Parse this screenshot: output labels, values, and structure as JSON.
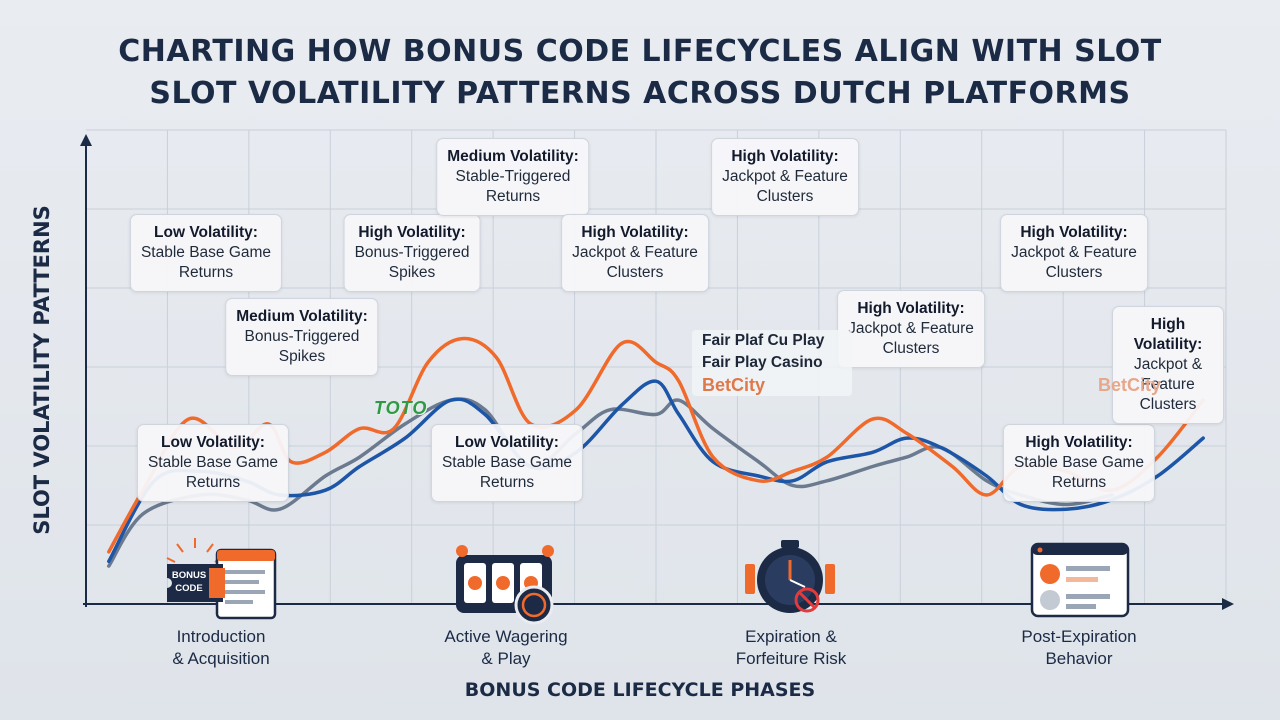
{
  "title_lines": [
    "CHARTING HOW BONUS CODE LIFECYCLES ALIGN WITH SLOT",
    "SLOT VOLATILITY PATTERNS ACROSS DUTCH PLATFORMS"
  ],
  "colors": {
    "orange": "#f06a2b",
    "blue": "#1d56a6",
    "gray": "#6b7a8e",
    "axis": "#1b2a45",
    "grid": "#c9d0da"
  },
  "chart_data": {
    "type": "line",
    "title": "CHARTING HOW BONUS CODE LIFECYCLES ALIGN WITH SLOT SLOT VOLATILITY PATTERNS ACROSS DUTCH PLATFORMS",
    "xlabel": "BONUS CODE LIFECYCLE PHASES",
    "ylabel": "SLOT VOLATILITY PATTERNS",
    "xlim": [
      0,
      10
    ],
    "ylim": [
      0,
      10
    ],
    "grid": true,
    "categories": [
      "Introduction & Acquisition",
      "Active Wagering & Play",
      "Expiration & Forfeiture Risk",
      "Post-Expiration Behavior"
    ],
    "category_x": [
      1.2,
      3.8,
      6.3,
      8.8
    ],
    "series": [
      {
        "color": "orange",
        "x": [
          0.2,
          0.5,
          0.9,
          1.3,
          1.6,
          1.8,
          2.1,
          2.4,
          2.7,
          3.0,
          3.3,
          3.6,
          3.9,
          4.3,
          4.7,
          5.0,
          5.2,
          5.5,
          5.9,
          6.2,
          6.5,
          6.9,
          7.2,
          7.6,
          7.9,
          8.2,
          8.6,
          9.0,
          9.4,
          9.8
        ],
        "y": [
          1.1,
          2.4,
          3.9,
          3.3,
          3.8,
          3.0,
          3.2,
          3.7,
          3.7,
          5.1,
          5.6,
          5.2,
          3.8,
          4.1,
          5.5,
          5.1,
          4.7,
          3.1,
          2.6,
          2.8,
          3.1,
          3.9,
          3.6,
          2.9,
          2.3,
          2.9,
          2.8,
          2.4,
          3.1,
          4.3
        ]
      },
      {
        "color": "blue",
        "x": [
          0.2,
          0.6,
          1.0,
          1.4,
          1.7,
          2.1,
          2.4,
          2.8,
          3.2,
          3.5,
          3.9,
          4.3,
          4.7,
          5.0,
          5.2,
          5.5,
          5.9,
          6.2,
          6.5,
          6.9,
          7.2,
          7.5,
          7.9,
          8.2,
          8.6,
          9.0,
          9.4,
          9.8
        ],
        "y": [
          0.9,
          2.6,
          2.8,
          2.6,
          2.3,
          2.4,
          2.9,
          3.5,
          4.3,
          4.0,
          2.9,
          3.2,
          4.2,
          4.7,
          4.0,
          3.0,
          2.7,
          2.6,
          3.0,
          3.2,
          3.5,
          3.3,
          2.7,
          2.1,
          2.0,
          2.2,
          2.7,
          3.5
        ]
      },
      {
        "color": "gray",
        "x": [
          0.2,
          0.5,
          1.0,
          1.4,
          1.7,
          2.1,
          2.4,
          2.8,
          3.2,
          3.5,
          3.9,
          4.3,
          4.6,
          5.0,
          5.2,
          5.5,
          5.9,
          6.2,
          6.5,
          6.9,
          7.2,
          7.5,
          7.9,
          8.2,
          8.6,
          9.0
        ],
        "y": [
          0.8,
          1.9,
          2.3,
          2.2,
          2.0,
          2.7,
          3.1,
          3.8,
          4.3,
          4.1,
          2.9,
          3.6,
          4.1,
          4.0,
          4.3,
          3.7,
          3.0,
          2.5,
          2.6,
          2.9,
          3.1,
          3.3,
          2.6,
          2.3,
          2.1,
          2.3
        ]
      }
    ],
    "annotations": [
      {
        "title": "Low Volatility:",
        "lines": [
          "Stable Base Game",
          "Returns"
        ]
      },
      {
        "title": "Medium Volatility:",
        "lines": [
          "Bonus-Triggered",
          "Spikes"
        ]
      },
      {
        "title": "Low Volatility:",
        "lines": [
          "Stable Base Game",
          "Returns"
        ]
      },
      {
        "title": "High Volatility:",
        "lines": [
          "Bonus-Triggered",
          "Spikes"
        ]
      },
      {
        "title": "Medium Volatility:",
        "lines": [
          "Stable-Triggered",
          "Returns"
        ]
      },
      {
        "title": "Low Volatility:",
        "lines": [
          "Stable Base Game",
          "Returns"
        ]
      },
      {
        "title": "High Volatility:",
        "lines": [
          "Jackpot & Feature",
          "Clusters"
        ]
      },
      {
        "title": "High Volatility:",
        "lines": [
          "Jackpot & Feature",
          "Clusters"
        ]
      },
      {
        "title": "High Volatility:",
        "lines": [
          "Jackpot & Feature",
          "Clusters"
        ]
      },
      {
        "title": "High Volatility:",
        "lines": [
          "Jackpot & Feature",
          "Clusters"
        ]
      },
      {
        "title": "High Volatility:",
        "lines": [
          "Stable Base Game",
          "Returns"
        ]
      },
      {
        "title": "High Volatility:",
        "lines": [
          "Jackpot & Feature",
          "Clusters"
        ]
      }
    ]
  },
  "phases": [
    {
      "line1": "Introduction",
      "line2": "& Acquisition",
      "icon": "bonus-code-ticket-icon"
    },
    {
      "line1": "Active Wagering",
      "line2": "& Play",
      "icon": "slot-machine-icon"
    },
    {
      "line1": "Expiration &",
      "line2": "Forfeiture Risk",
      "icon": "stopwatch-icon"
    },
    {
      "line1": "Post-Expiration",
      "line2": "Behavior",
      "icon": "browser-profile-icon"
    }
  ],
  "icon_text": {
    "bonus_code_line1": "BONUS",
    "bonus_code_line2": "CODE"
  },
  "logos": {
    "toto": "TOTO",
    "fairplay_line1": "Fair Plaf Cu Play",
    "fairplay_line2": "Fair Play Casino",
    "betcity_center": "BetCity",
    "betcity_right": "BetCity"
  }
}
